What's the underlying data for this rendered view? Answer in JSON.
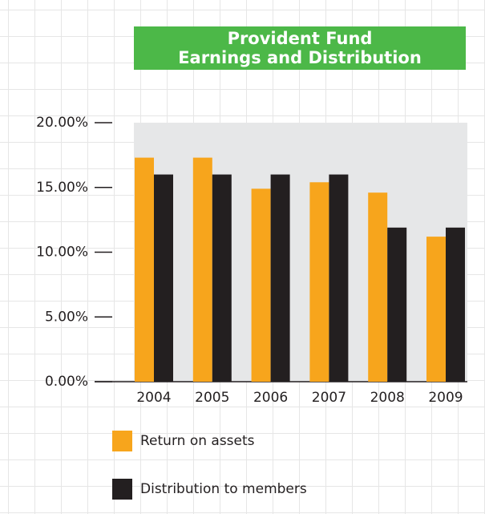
{
  "chart_data": {
    "type": "bar",
    "title": [
      "Provident Fund",
      "Earnings and Distribution"
    ],
    "categories": [
      "2004",
      "2005",
      "2006",
      "2007",
      "2008",
      "2009"
    ],
    "series": [
      {
        "name": "Return on assets",
        "color": "#f7a51c",
        "values": [
          17.3,
          17.3,
          14.9,
          15.4,
          14.6,
          11.2
        ]
      },
      {
        "name": "Distribution to members",
        "color": "#231f20",
        "values": [
          16.0,
          16.0,
          16.0,
          16.0,
          11.9,
          11.9
        ]
      }
    ],
    "ylim": [
      0,
      20
    ],
    "yticks": [
      {
        "value": 0,
        "label": "0.00%"
      },
      {
        "value": 5,
        "label": "5.00%"
      },
      {
        "value": 10,
        "label": "10.00%"
      },
      {
        "value": 15,
        "label": "15.00%"
      },
      {
        "value": 20,
        "label": "20.00%"
      }
    ],
    "legend": "bottom"
  }
}
